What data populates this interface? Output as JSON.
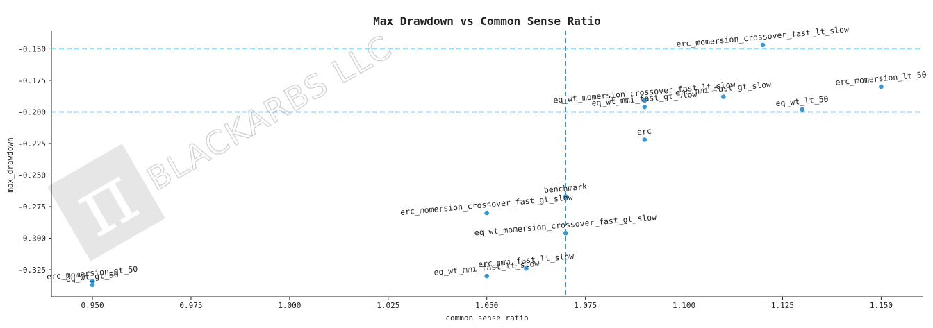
{
  "watermark": {
    "text": "BLACKARBS LLC",
    "symbol": "π"
  },
  "chart_data": {
    "type": "scatter",
    "title": "Max Drawdown vs Common Sense Ratio",
    "xlabel": "common_sense_ratio",
    "ylabel": "max_drawdown",
    "xlim": [
      0.9396,
      1.1605
    ],
    "ylim": [
      -0.3464,
      -0.1355
    ],
    "xticks": [
      0.95,
      0.975,
      1.0,
      1.025,
      1.05,
      1.075,
      1.1,
      1.125,
      1.15
    ],
    "xtick_labels": [
      "0.950",
      "0.975",
      "1.000",
      "1.025",
      "1.050",
      "1.075",
      "1.100",
      "1.125",
      "1.150"
    ],
    "yticks": [
      -0.15,
      -0.175,
      -0.2,
      -0.225,
      -0.25,
      -0.275,
      -0.3,
      -0.325
    ],
    "ytick_labels": [
      "-0.150",
      "-0.175",
      "-0.200",
      "-0.225",
      "-0.250",
      "-0.275",
      "-0.300",
      "-0.325"
    ],
    "hlines": [
      -0.15,
      -0.2
    ],
    "vlines": [
      1.07
    ],
    "marker_color": "#3498db",
    "line_color": "#3498db",
    "grid": false,
    "points": [
      {
        "label": "erc_momersion_crossover_fast_lt_slow",
        "x": 1.12,
        "y": -0.147
      },
      {
        "label": "erc_momersion_lt_50",
        "x": 1.15,
        "y": -0.18
      },
      {
        "label": "eq_wt_momersion_crossover_fast_lt_slow",
        "x": 1.09,
        "y": -0.191
      },
      {
        "label": "eq_wt_mmi_fast_gt_slow",
        "x": 1.09,
        "y": -0.196
      },
      {
        "label": "erc_mmi_fast_gt_slow",
        "x": 1.11,
        "y": -0.188
      },
      {
        "label": "eq_wt_lt_50",
        "x": 1.13,
        "y": -0.198
      },
      {
        "label": "erc",
        "x": 1.09,
        "y": -0.222
      },
      {
        "label": "benchmark",
        "x": 1.07,
        "y": -0.267
      },
      {
        "label": "erc_momersion_crossover_fast_gt_slow",
        "x": 1.05,
        "y": -0.28
      },
      {
        "label": "eq_wt_momersion_crossover_fast_gt_slow",
        "x": 1.07,
        "y": -0.296
      },
      {
        "label": "erc_mmi_fast_lt_slow",
        "x": 1.06,
        "y": -0.324
      },
      {
        "label": "eq_wt_mmi_fast_lt_slow",
        "x": 1.05,
        "y": -0.33
      },
      {
        "label": "erc_momersion_gt_50",
        "x": 0.95,
        "y": -0.334
      },
      {
        "label": "eq_wt_gt_50",
        "x": 0.95,
        "y": -0.337
      }
    ]
  }
}
